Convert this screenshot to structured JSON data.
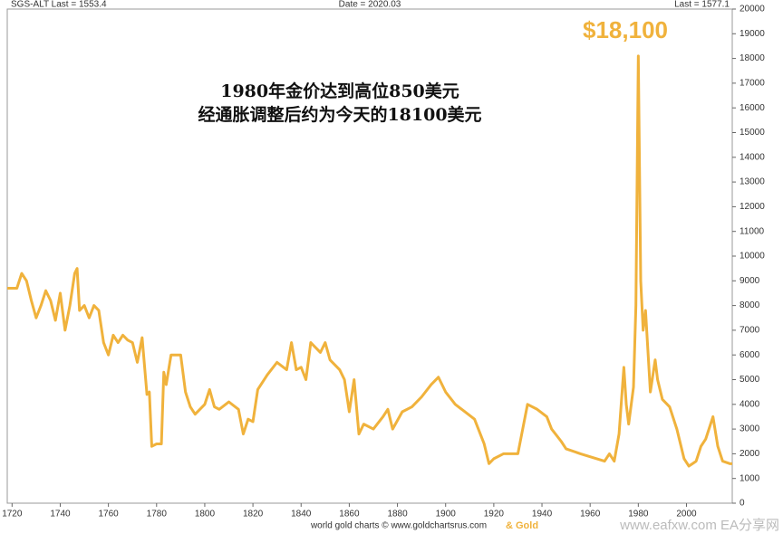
{
  "chart_data": {
    "type": "line",
    "header": {
      "left": "SGS-ALT Last = 1553.4",
      "center": "Date = 2020.03",
      "right": "Last = 1577.1"
    },
    "annotations": {
      "peak": "$18,100",
      "line1": "1980年金价达到高位850美元",
      "line2": "经通胀调整后约为今天的18100美元"
    },
    "footer": {
      "credit": "world gold charts © www.goldchartsrus.com",
      "brand": "& Gold",
      "watermark": "www.eafxw.com  EA分享网"
    },
    "x": [
      1718,
      1722,
      1724,
      1726,
      1728,
      1730,
      1732,
      1734,
      1736,
      1738,
      1740,
      1742,
      1744,
      1746,
      1747,
      1748,
      1750,
      1752,
      1754,
      1756,
      1758,
      1760,
      1762,
      1764,
      1766,
      1768,
      1770,
      1772,
      1774,
      1776,
      1777,
      1778,
      1780,
      1782,
      1783,
      1784,
      1786,
      1790,
      1792,
      1794,
      1796,
      1800,
      1802,
      1804,
      1806,
      1810,
      1814,
      1816,
      1818,
      1820,
      1822,
      1826,
      1830,
      1834,
      1836,
      1838,
      1840,
      1842,
      1844,
      1848,
      1850,
      1852,
      1856,
      1858,
      1860,
      1862,
      1864,
      1866,
      1870,
      1874,
      1876,
      1878,
      1882,
      1886,
      1890,
      1894,
      1897,
      1900,
      1904,
      1908,
      1912,
      1916,
      1918,
      1920,
      1924,
      1930,
      1932,
      1934,
      1938,
      1942,
      1944,
      1948,
      1950,
      1956,
      1966,
      1968,
      1970,
      1972,
      1974,
      1975,
      1976,
      1978,
      1979,
      1980,
      1981,
      1982,
      1983,
      1985,
      1987,
      1988,
      1990,
      1993,
      1996,
      1999,
      2001,
      2004,
      2006,
      2008,
      2011,
      2013,
      2015,
      2018,
      2019
    ],
    "series": [
      {
        "name": "SGS-ALT",
        "color": "#f0b23c",
        "values": [
          8700,
          8700,
          9300,
          9000,
          8200,
          7500,
          8000,
          8600,
          8200,
          7400,
          8500,
          7000,
          8000,
          9300,
          9500,
          7800,
          8000,
          7500,
          8000,
          7800,
          6500,
          6000,
          6800,
          6500,
          6800,
          6600,
          6500,
          5700,
          6700,
          4400,
          4500,
          2300,
          2400,
          2400,
          5300,
          4800,
          6000,
          6000,
          4500,
          3900,
          3600,
          4000,
          4600,
          3900,
          3800,
          4100,
          3800,
          2800,
          3400,
          3300,
          4600,
          5200,
          5700,
          5400,
          6500,
          5400,
          5500,
          5000,
          6500,
          6100,
          6500,
          5800,
          5400,
          5000,
          3700,
          5000,
          2800,
          3200,
          3000,
          3500,
          3800,
          3000,
          3700,
          3900,
          4300,
          4800,
          5100,
          4500,
          4000,
          3700,
          3400,
          2400,
          1600,
          1800,
          2000,
          2000,
          3000,
          4000,
          3800,
          3500,
          3000,
          2500,
          2200,
          2000,
          1700,
          2000,
          1700,
          2800,
          5500,
          4000,
          3200,
          4700,
          8000,
          18100,
          9000,
          7000,
          7800,
          4500,
          5800,
          5000,
          4200,
          3900,
          3000,
          1800,
          1500,
          1700,
          2300,
          2600,
          3500,
          2300,
          1700,
          1600,
          1600
        ]
      }
    ],
    "xlim": [
      1718,
      2019
    ],
    "xticks": [
      1720,
      1740,
      1760,
      1780,
      1800,
      1820,
      1840,
      1860,
      1880,
      1900,
      1920,
      1940,
      1960,
      1980,
      2000
    ],
    "ylim": [
      0,
      20000
    ],
    "yticks": [
      0,
      1000,
      2000,
      3000,
      4000,
      5000,
      6000,
      7000,
      8000,
      9000,
      10000,
      11000,
      12000,
      13000,
      14000,
      15000,
      16000,
      17000,
      18000,
      19000,
      20000
    ],
    "grid": false
  }
}
